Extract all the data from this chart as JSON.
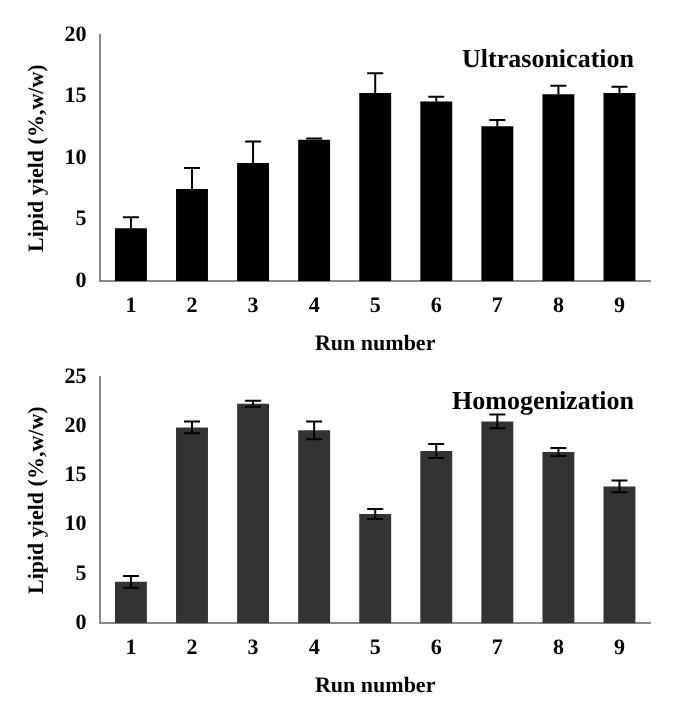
{
  "chart_data": [
    {
      "type": "bar",
      "title": "Ultrasonication",
      "xlabel": "Run number",
      "ylabel": "Lipid yield (%,w/w)",
      "categories": [
        "1",
        "2",
        "3",
        "4",
        "5",
        "6",
        "7",
        "8",
        "9"
      ],
      "values": [
        4.3,
        7.5,
        9.6,
        11.5,
        15.3,
        14.6,
        12.6,
        15.2,
        15.3
      ],
      "errors": [
        [
          4.3,
          5.2
        ],
        [
          7.5,
          9.2
        ],
        [
          9.6,
          11.35
        ],
        [
          11.5,
          11.6
        ],
        [
          15.3,
          16.9
        ],
        [
          14.6,
          15.0
        ],
        [
          12.6,
          13.1
        ],
        [
          15.2,
          15.9
        ],
        [
          15.3,
          15.8
        ]
      ],
      "color": "#000000",
      "ylim": [
        0,
        20
      ],
      "yticks": [
        0,
        5,
        10,
        15,
        20
      ],
      "grid": false,
      "legend": false
    },
    {
      "type": "bar",
      "title": "Homogenization",
      "xlabel": "Run number",
      "ylabel": "Lipid yield (%,w/w)",
      "categories": [
        "1",
        "2",
        "3",
        "4",
        "5",
        "6",
        "7",
        "8",
        "9"
      ],
      "values": [
        4.2,
        19.9,
        22.3,
        19.6,
        11.1,
        17.5,
        20.5,
        17.4,
        13.9
      ],
      "errors": [
        0.6,
        0.6,
        0.3,
        0.9,
        0.5,
        0.7,
        0.7,
        0.4,
        0.6
      ],
      "color": "#333333",
      "ylim": [
        0,
        25
      ],
      "yticks": [
        0,
        5,
        10,
        15,
        20,
        25
      ],
      "grid": false,
      "legend": false
    }
  ]
}
